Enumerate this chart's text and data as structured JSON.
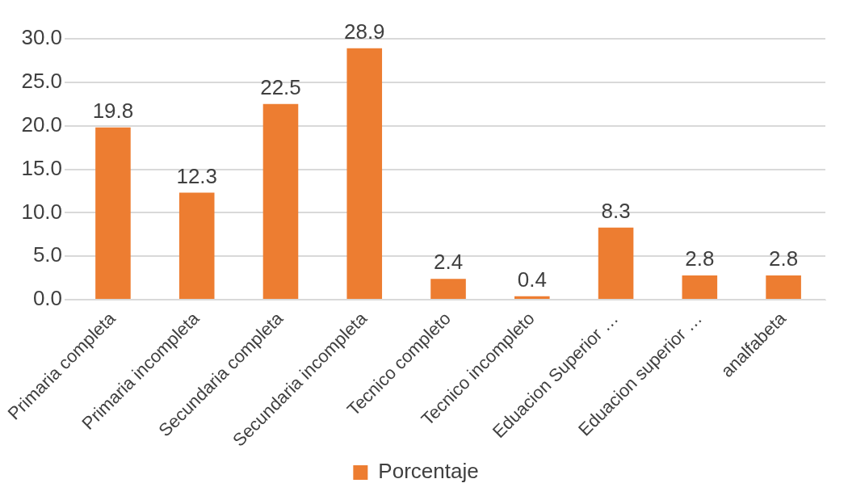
{
  "chart_data": {
    "type": "bar",
    "categories": [
      "Primaria completa",
      "Primaria incompleta",
      "Secundaria completa",
      "Secundaria incompleta",
      "Tecnico completo",
      "Tecnico incompleto",
      "Eduacion Superior …",
      "Eduacion superior …",
      "analfabeta"
    ],
    "series": [
      {
        "name": "Porcentaje",
        "color": "#ed7d31",
        "values": [
          19.8,
          12.3,
          22.5,
          28.9,
          2.4,
          0.4,
          8.3,
          2.8,
          2.8
        ]
      }
    ],
    "ylim": [
      0,
      30
    ],
    "yticks": [
      {
        "value": 0,
        "label": "0.0"
      },
      {
        "value": 5,
        "label": "5.0"
      },
      {
        "value": 10,
        "label": "10.0"
      },
      {
        "value": 15,
        "label": "15.0"
      },
      {
        "value": 20,
        "label": "20.0"
      },
      {
        "value": 25,
        "label": "25.0"
      },
      {
        "value": 30,
        "label": "30.0"
      }
    ],
    "grid": "y",
    "legend": "bottom",
    "data_labels": true
  }
}
